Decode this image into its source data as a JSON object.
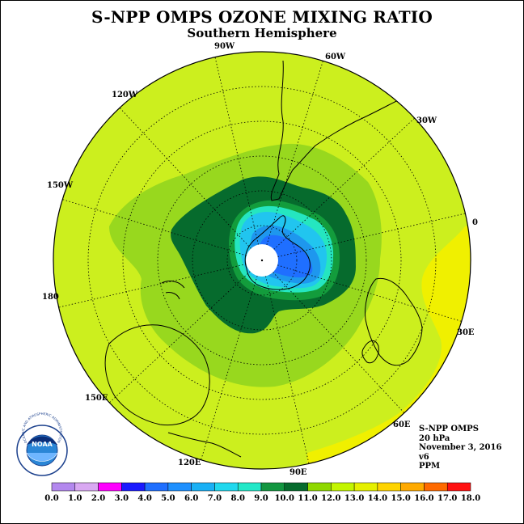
{
  "title": "S-NPP OMPS OZONE MIXING RATIO",
  "subtitle": "Southern Hemisphere",
  "longitude_labels": [
    "90W",
    "60W",
    "30W",
    "0",
    "30E",
    "60E",
    "90E",
    "120E",
    "150E",
    "180",
    "150W",
    "120W"
  ],
  "info": {
    "instrument": "S-NPP OMPS",
    "pressure": "20 hPa",
    "date": "November 3, 2016",
    "version": "v6",
    "units": "PPM"
  },
  "legend": {
    "ticks": [
      "0.0",
      "1.0",
      "2.0",
      "3.0",
      "4.0",
      "5.0",
      "6.0",
      "7.0",
      "8.0",
      "9.0",
      "10.0",
      "11.0",
      "12.0",
      "13.0",
      "14.0",
      "15.0",
      "16.0",
      "17.0",
      "18.0"
    ],
    "colors": [
      "#b388ee",
      "#d9a8f2",
      "#ff00ff",
      "#1a1aff",
      "#1f6fff",
      "#1e90ff",
      "#19b0f5",
      "#20d8ee",
      "#22e8c8",
      "#129640",
      "#066b2d",
      "#8fd800",
      "#c3f500",
      "#e6f000",
      "#ffd400",
      "#ffaa00",
      "#ff6a00",
      "#ff1010",
      "#7d4b2a"
    ]
  },
  "logo": {
    "text": "NOAA",
    "ring_text": "NATIONAL OCEANIC AND ATMOSPHERIC ADMINISTRATION • U.S. DEPARTMENT OF COMMERCE"
  },
  "map_colors": {
    "background": "#ccef1e",
    "ring_10_11": "#98d81e",
    "ring_9_10": "#066b2d",
    "ring_8_9": "#139c3c",
    "ring_7_8": "#25e6c0",
    "ring_6_7": "#21c5ef",
    "ring_5_6": "#1e97ee",
    "ring_4_5": "#1f6fff",
    "high_12_13": "#f0f000",
    "pole": "#ffffff"
  }
}
